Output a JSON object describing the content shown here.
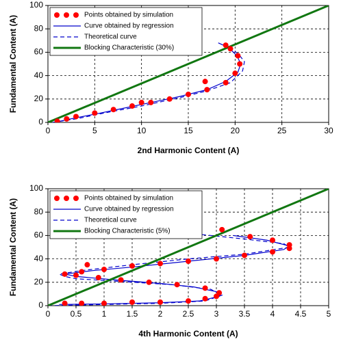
{
  "chart_data": [
    {
      "type": "line",
      "xlabel": "2nd Harmonic Content (A)",
      "ylabel": "Fundamental Content (A)",
      "xlim": [
        0,
        30
      ],
      "ylim": [
        0,
        100
      ],
      "xticks": [
        0,
        5,
        10,
        15,
        20,
        25,
        30
      ],
      "yticks": [
        0,
        20,
        40,
        60,
        80,
        100
      ],
      "grid": true,
      "legend": "upper left",
      "series": [
        {
          "name": "Points obtained by simulation",
          "mode": "markers",
          "color": "#ff0000",
          "x": [
            1,
            2,
            3,
            5,
            7,
            9,
            10,
            11,
            13,
            15,
            17,
            19,
            20,
            20.5,
            20.3,
            19.5,
            19,
            16.8
          ],
          "values": [
            1,
            3,
            5,
            8,
            11,
            14,
            17,
            17,
            20,
            24,
            28,
            34,
            42,
            50,
            57,
            63,
            66,
            35
          ]
        },
        {
          "name": "Curve obtained by regression",
          "mode": "solid",
          "color": "#0000cc",
          "x": [
            1,
            3,
            5,
            8,
            11,
            14,
            17,
            19,
            20.3,
            20.6,
            20.2,
            19.3,
            18.2
          ],
          "values": [
            0.5,
            4,
            7,
            12,
            17,
            22,
            28,
            35,
            43,
            50,
            57,
            64,
            68
          ]
        },
        {
          "name": "Theoretical curve",
          "mode": "dashed",
          "color": "#0000cc",
          "x": [
            0.5,
            3,
            6,
            10,
            14,
            17,
            19.5,
            20.8,
            21,
            20.4,
            19.5,
            18.8
          ],
          "values": [
            0,
            3,
            8,
            14,
            21,
            27,
            34,
            44,
            52,
            58,
            64,
            67
          ]
        },
        {
          "name": "Blocking Characteristic (30%)",
          "mode": "thick",
          "color": "#117711",
          "x": [
            0,
            30
          ],
          "values": [
            0,
            100
          ]
        }
      ]
    },
    {
      "type": "line",
      "xlabel": "4th Harmonic Content (A)",
      "ylabel": "Fundamental Content (A)",
      "xlim": [
        0,
        5
      ],
      "ylim": [
        0,
        100
      ],
      "xticks": [
        0,
        0.5,
        1,
        1.5,
        2,
        2.5,
        3,
        3.5,
        4,
        4.5,
        5
      ],
      "yticks": [
        0,
        20,
        40,
        60,
        80,
        100
      ],
      "grid": true,
      "legend": "upper left",
      "series": [
        {
          "name": "Points obtained by simulation",
          "mode": "markers",
          "color": "#ff0000",
          "x": [
            0.3,
            0.6,
            1,
            1.5,
            2,
            2.5,
            2.8,
            3.0,
            3.05,
            2.8,
            2.3,
            1.8,
            1.3,
            0.9,
            0.5,
            0.3,
            0.6,
            1,
            1.5,
            2,
            2.5,
            3,
            3.5,
            4,
            4.3,
            4.3,
            4,
            3.6,
            3.1,
            0.7
          ],
          "values": [
            2,
            2,
            2,
            3,
            3,
            4,
            6,
            8,
            11,
            15,
            18,
            20,
            22,
            24,
            26,
            27,
            29,
            31,
            34,
            36,
            38,
            40,
            43,
            46,
            49,
            52,
            56,
            59,
            65,
            35
          ]
        },
        {
          "name": "Curve obtained by regression",
          "mode": "solid",
          "color": "#0000cc",
          "x": [
            0.2,
            1,
            2,
            2.7,
            3.05,
            3.0,
            2.6,
            2,
            1.2,
            0.5,
            0.3,
            0.8,
            1.5,
            2.5,
            3.5,
            4.2,
            4.3,
            3.9,
            3.3
          ],
          "values": [
            1,
            1.5,
            2.5,
            4,
            8,
            12,
            16,
            19,
            22,
            25,
            27,
            30,
            33,
            38,
            43,
            48,
            51,
            56,
            60
          ]
        },
        {
          "name": "Theoretical curve",
          "mode": "dashed",
          "color": "#0000cc",
          "x": [
            0,
            1,
            2,
            2.8,
            3.1,
            2.9,
            2.2,
            1.2,
            0.5,
            0.3,
            0.2,
            0.6,
            1.5,
            2.5,
            3.5,
            4.3,
            4.2,
            3.5,
            2.5,
            2
          ],
          "values": [
            0,
            1,
            2,
            4,
            9,
            14,
            18,
            21,
            23,
            25,
            27,
            30,
            35,
            40,
            44,
            50,
            53,
            57,
            62,
            63
          ]
        },
        {
          "name": "Blocking Characteristic (5%)",
          "mode": "thick",
          "color": "#117711",
          "x": [
            0,
            5
          ],
          "values": [
            0,
            100
          ]
        }
      ]
    }
  ]
}
